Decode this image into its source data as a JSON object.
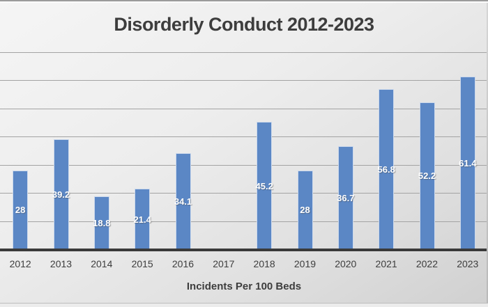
{
  "chart_data": {
    "type": "bar",
    "title": "Disorderly Conduct 2012-2023",
    "xlabel": "Incidents Per 100 Beds",
    "ylabel": "",
    "categories": [
      "2012",
      "2013",
      "2014",
      "2015",
      "2016",
      "2017",
      "2018",
      "2019",
      "2020",
      "2021",
      "2022",
      "2023"
    ],
    "values": [
      28,
      39.2,
      18.8,
      21.4,
      34.1,
      null,
      45.2,
      28,
      36.7,
      56.8,
      52.2,
      61.4
    ],
    "value_labels": [
      "28",
      "39.2",
      "18.8",
      "21.4",
      "34.1",
      "",
      "45.2",
      "28",
      "36.7",
      "56.8",
      "52.2",
      "61.4"
    ],
    "ylim": [
      0,
      70
    ],
    "gridline_step": 10,
    "grid": true,
    "legend": false,
    "bar_color": "#5b87c5",
    "bar_border_color": "#ccd9ec",
    "bar_label_color": "#ffffff",
    "gridline_color": "#a3a3a3",
    "axis_line_color": "#3a3a3a",
    "text_color": "#3d3d3d"
  }
}
